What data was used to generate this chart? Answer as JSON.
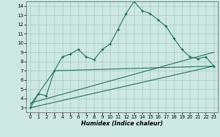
{
  "xlabel": "Humidex (Indice chaleur)",
  "background_color": "#cce8e0",
  "grid_color": "#aaccc4",
  "line_color": "#1a6b5a",
  "xlim": [
    -0.5,
    23.5
  ],
  "ylim": [
    2.5,
    14.5
  ],
  "yticks": [
    3,
    4,
    5,
    6,
    7,
    8,
    9,
    10,
    11,
    12,
    13,
    14
  ],
  "xticks": [
    0,
    1,
    2,
    3,
    4,
    5,
    6,
    7,
    8,
    9,
    10,
    11,
    12,
    13,
    14,
    15,
    16,
    17,
    18,
    19,
    20,
    21,
    22,
    23
  ],
  "series1_x": [
    0,
    1,
    2,
    3,
    4,
    5,
    6,
    7,
    8,
    9,
    10,
    11,
    12,
    13,
    14,
    15,
    16,
    17,
    18,
    19,
    20,
    21,
    22,
    23
  ],
  "series1_y": [
    3.0,
    4.5,
    4.3,
    7.0,
    8.5,
    8.8,
    9.3,
    8.5,
    8.2,
    9.3,
    9.9,
    11.5,
    13.2,
    14.5,
    13.5,
    13.2,
    12.5,
    11.8,
    10.5,
    9.3,
    8.5,
    8.3,
    8.5,
    7.5
  ],
  "series2_x": [
    0,
    3,
    23
  ],
  "series2_y": [
    3.3,
    7.0,
    7.5
  ],
  "series3_x": [
    0,
    23
  ],
  "series3_y": [
    3.5,
    9.0
  ],
  "series4_x": [
    0,
    23
  ],
  "series4_y": [
    3.0,
    7.5
  ],
  "xlabel_fontsize": 6,
  "tick_fontsize": 5
}
